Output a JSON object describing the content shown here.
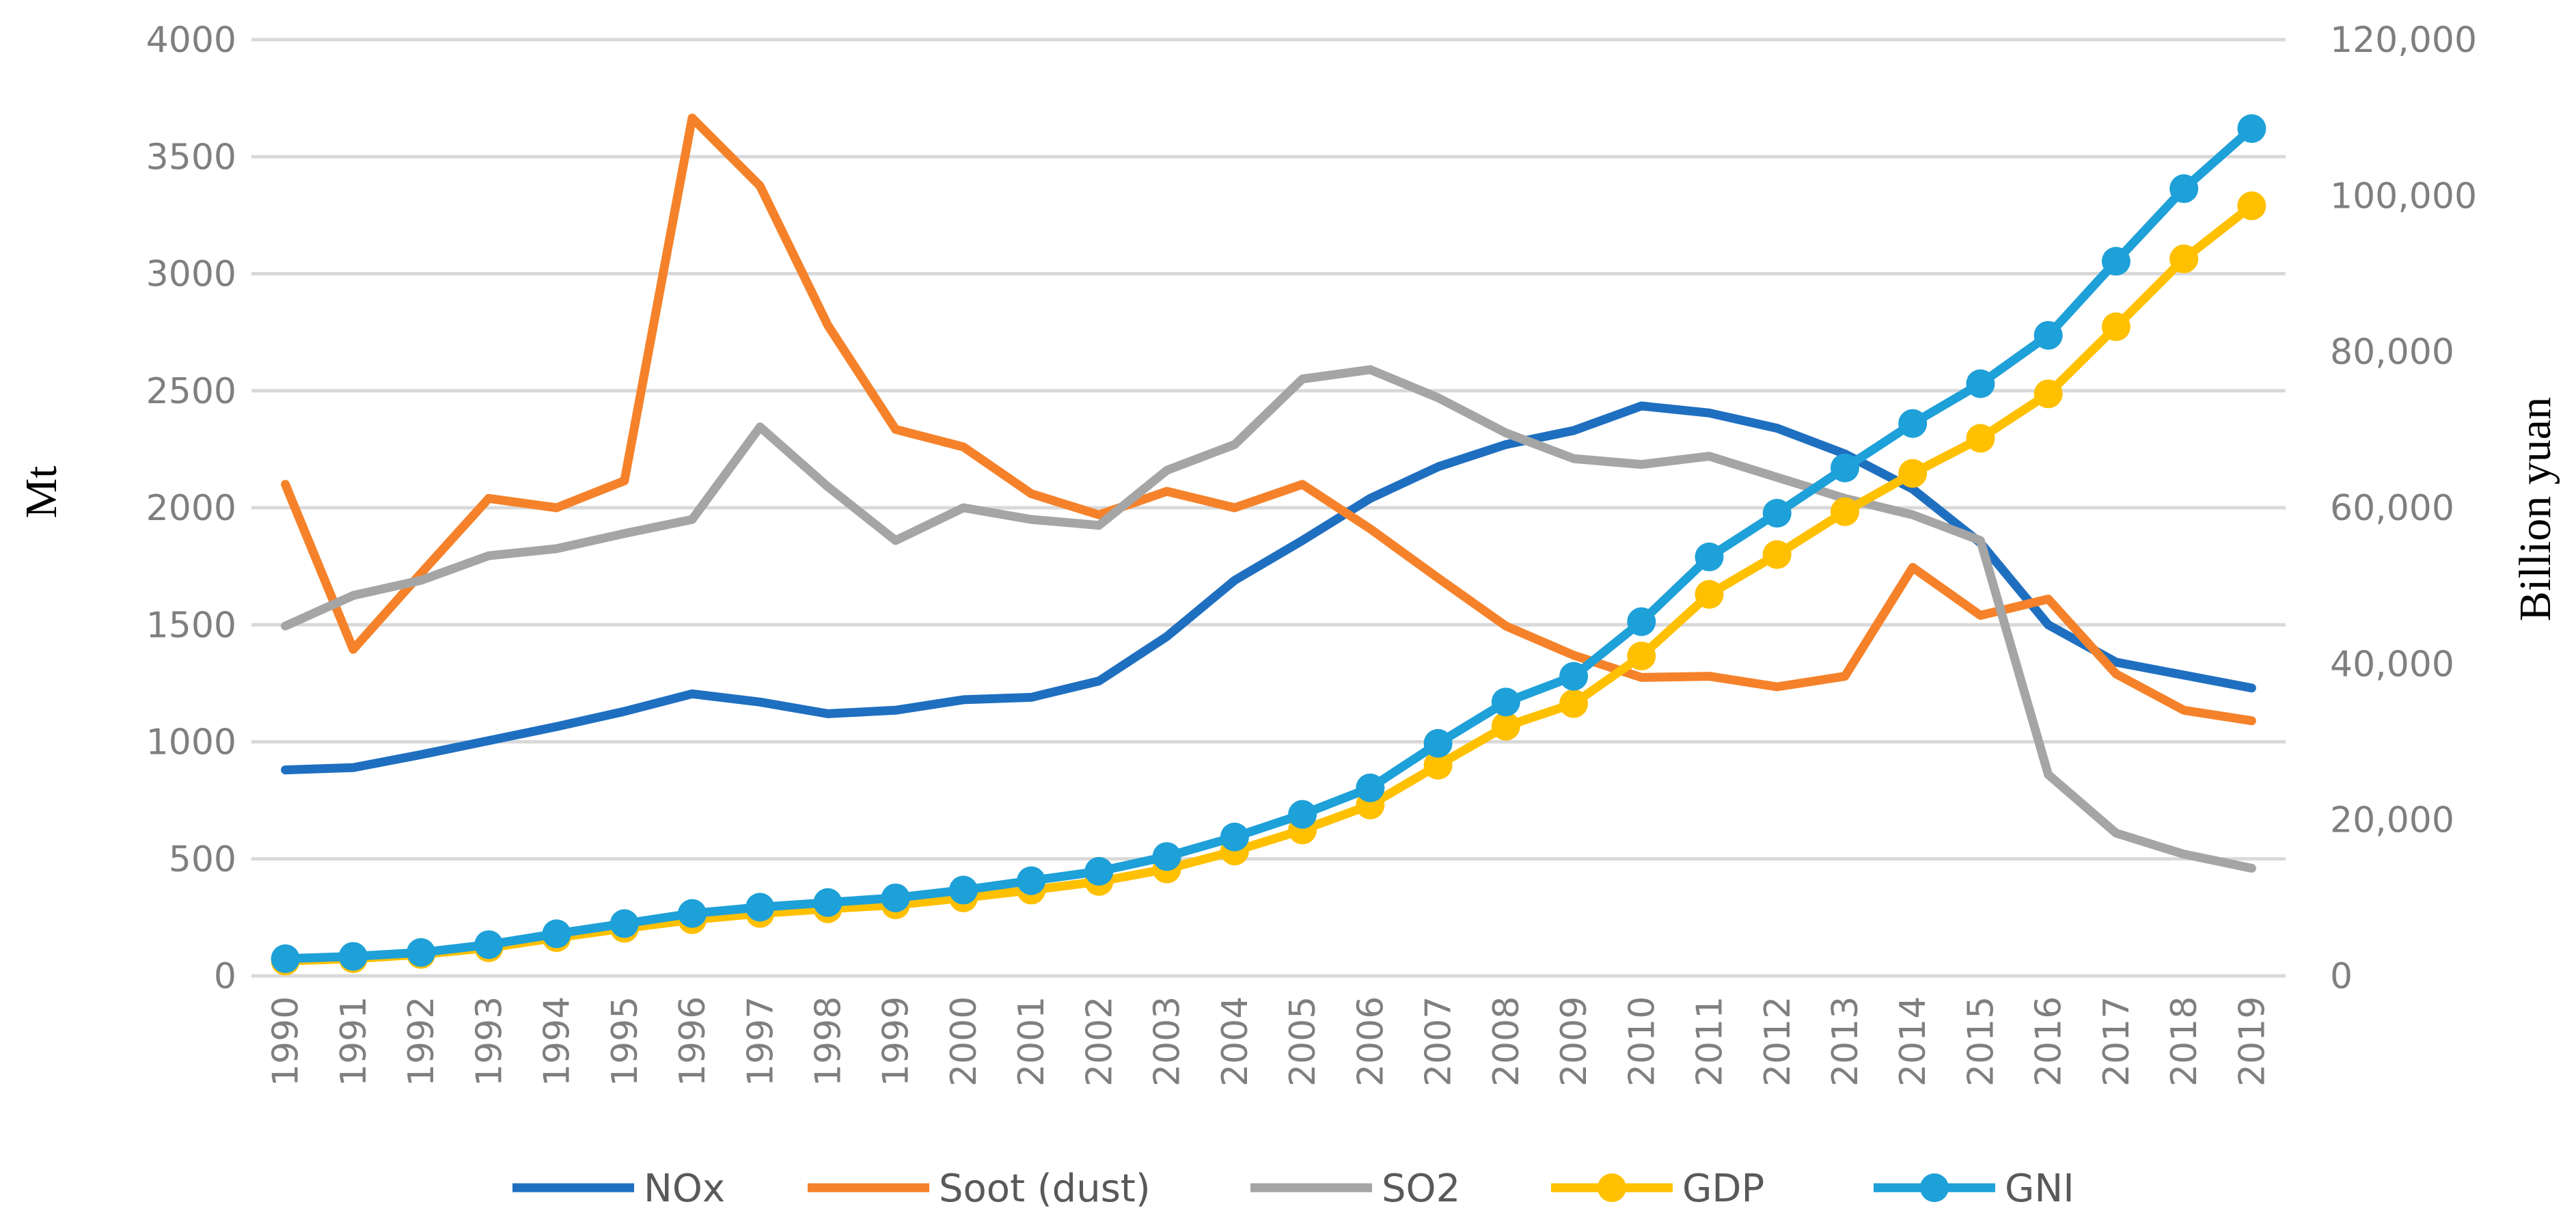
{
  "chart_data": {
    "type": "line",
    "title": "",
    "x": [
      "1990",
      "1991",
      "1992",
      "1993",
      "1994",
      "1995",
      "1996",
      "1997",
      "1998",
      "1999",
      "2000",
      "2001",
      "2002",
      "2003",
      "2004",
      "2005",
      "2006",
      "2007",
      "2008",
      "2009",
      "2010",
      "2011",
      "2012",
      "2013",
      "2014",
      "2015",
      "2016",
      "2017",
      "2018",
      "2019"
    ],
    "ylabel": "Mt",
    "y2label": "Billion yuan",
    "ylim": [
      0,
      4000
    ],
    "y2lim": [
      0,
      120000
    ],
    "yticks": [
      "0",
      "500",
      "1000",
      "1500",
      "2000",
      "2500",
      "3000",
      "3500",
      "4000"
    ],
    "y2ticks": [
      "0",
      "20,000",
      "40,000",
      "60,000",
      "80,000",
      "100,000",
      "120,000"
    ],
    "grid": true,
    "legend_position": "bottom",
    "series": [
      {
        "name": "NOx",
        "axis": "left",
        "color": "#1f6fc0",
        "marker": false,
        "values": [
          880,
          890,
          945,
          1005,
          1065,
          1130,
          1205,
          1170,
          1120,
          1135,
          1180,
          1190,
          1260,
          1450,
          1690,
          1860,
          2040,
          2175,
          2270,
          2330,
          2435,
          2405,
          2340,
          2230,
          2080,
          1850,
          1500,
          1340,
          1285,
          1230
        ]
      },
      {
        "name": "Soot (dust)",
        "axis": "left",
        "color": "#f5822a",
        "marker": false,
        "values": [
          2100,
          1395,
          1720,
          2040,
          2000,
          2115,
          3665,
          3375,
          2780,
          2335,
          2260,
          2060,
          1970,
          2070,
          2000,
          2100,
          1910,
          1700,
          1495,
          1370,
          1275,
          1280,
          1235,
          1280,
          1745,
          1540,
          1610,
          1290,
          1135,
          1090
        ]
      },
      {
        "name": "SO2",
        "axis": "left",
        "color": "#a5a5a5",
        "marker": false,
        "values": [
          1495,
          1625,
          1690,
          1795,
          1825,
          1890,
          1950,
          2345,
          2090,
          1860,
          2000,
          1950,
          1925,
          2160,
          2270,
          2550,
          2590,
          2470,
          2320,
          2210,
          2185,
          2220,
          2130,
          2040,
          1970,
          1860,
          860,
          610,
          520,
          460
        ]
      },
      {
        "name": "GDP",
        "axis": "right",
        "color": "#ffc000",
        "marker": true,
        "values": [
          1900,
          2200,
          2750,
          3600,
          4900,
          6100,
          7200,
          8000,
          8600,
          9100,
          10000,
          11000,
          12100,
          13700,
          16000,
          18700,
          21900,
          27000,
          32000,
          34900,
          41000,
          48900,
          54000,
          59500,
          64400,
          68900,
          74600,
          83200,
          91900,
          98700
        ]
      },
      {
        "name": "GNI",
        "axis": "right",
        "color": "#1ea0d8",
        "marker": true,
        "values": [
          2200,
          2500,
          3000,
          4000,
          5400,
          6700,
          8000,
          8800,
          9400,
          10000,
          11000,
          12200,
          13400,
          15300,
          17800,
          20700,
          24100,
          29800,
          35100,
          38400,
          45400,
          53700,
          59300,
          65100,
          70800,
          75900,
          82100,
          91600,
          100900,
          108600
        ]
      }
    ]
  }
}
